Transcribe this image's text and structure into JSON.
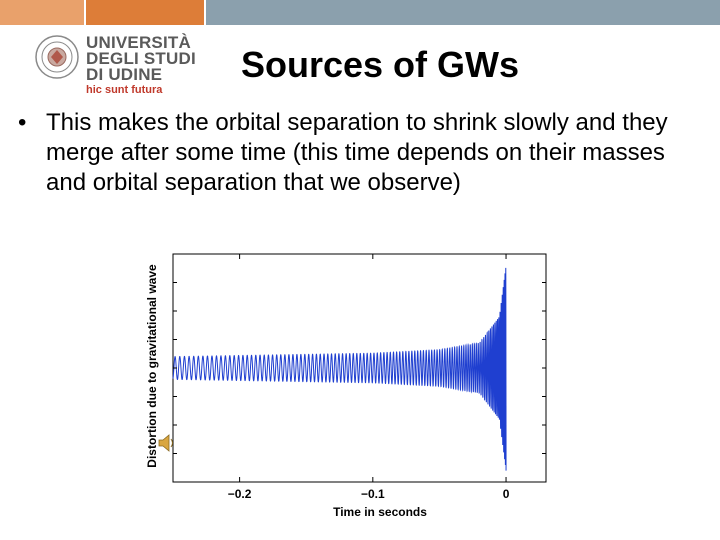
{
  "slide": {
    "title": "Sources of GWs",
    "bullet_text": "This makes the orbital separation to shrink slowly and they merge after some time (this time depends on their masses and orbital separation that we observe)",
    "bullet_symbol": "•"
  },
  "logo": {
    "lines": [
      "UNIVERSITÀ",
      "DEGLI STUDI",
      "DI UDINE"
    ],
    "motto": "hic sunt futura",
    "text_color": "#5a5a5a",
    "motto_color": "#c0392b",
    "seal_icon": "university-seal-icon"
  },
  "colors": {
    "bar_segments": [
      "#e9a16b",
      "#dd7d38",
      "#8ba0ad"
    ],
    "wave": "#1f3fd0"
  },
  "chart_data": {
    "type": "line",
    "xlabel": "Time in seconds",
    "ylabel": "Distortion due to gravitational wave",
    "x_ticks": [
      -0.2,
      -0.1,
      0
    ],
    "x_tick_labels": [
      "−0.2",
      "−0.1",
      "0"
    ],
    "xlim": [
      -0.25,
      0.03
    ],
    "ylim": [
      -1,
      1
    ],
    "grid": false,
    "series": [
      {
        "description_points": [
          {
            "t": -0.25,
            "amplitude": 0.1
          },
          {
            "t": -0.2,
            "amplitude": 0.11
          },
          {
            "t": -0.1,
            "amplitude": 0.13
          },
          {
            "t": -0.05,
            "amplitude": 0.16
          },
          {
            "t": -0.02,
            "amplitude": 0.22
          },
          {
            "t": -0.005,
            "amplitude": 0.45
          },
          {
            "t": 0,
            "amplitude": 0.9
          }
        ]
      }
    ]
  },
  "audio": {
    "icon": "speaker-icon"
  }
}
